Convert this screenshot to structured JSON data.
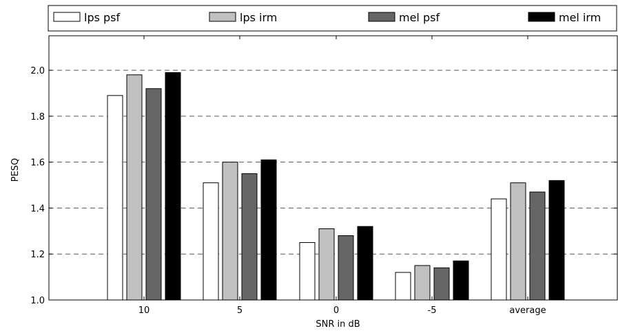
{
  "chart_data": {
    "type": "bar",
    "categories": [
      "10",
      "5",
      "0",
      "-5",
      "average"
    ],
    "series": [
      {
        "name": "lps psf",
        "color": "#ffffff",
        "values": [
          1.89,
          1.51,
          1.25,
          1.12,
          1.44
        ]
      },
      {
        "name": "lps irm",
        "color": "#c0c0c0",
        "values": [
          1.98,
          1.6,
          1.31,
          1.15,
          1.51
        ]
      },
      {
        "name": "mel psf",
        "color": "#666666",
        "values": [
          1.92,
          1.55,
          1.28,
          1.14,
          1.47
        ]
      },
      {
        "name": "mel irm",
        "color": "#000000",
        "values": [
          1.99,
          1.61,
          1.32,
          1.17,
          1.52
        ]
      }
    ],
    "title": "",
    "xlabel": "SNR in dB",
    "ylabel": "PESQ",
    "ylim": [
      1.0,
      2.15
    ],
    "yticks": [
      "1.0",
      "1.2",
      "1.4",
      "1.6",
      "1.8",
      "2.0"
    ],
    "grid": "horizontal dashed",
    "legend_position": "top"
  }
}
